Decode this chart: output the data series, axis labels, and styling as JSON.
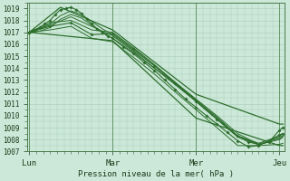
{
  "background_color": "#cce8d8",
  "plot_bg_color": "#cce8d8",
  "grid_major_color": "#aaccb8",
  "grid_minor_color": "#aaccb8",
  "line_color": "#2d6e2d",
  "ylim": [
    1007,
    1019.5
  ],
  "yticks": [
    1007,
    1008,
    1009,
    1010,
    1011,
    1012,
    1013,
    1014,
    1015,
    1016,
    1017,
    1018,
    1019
  ],
  "xlim": [
    -2,
    294
  ],
  "xtick_labels": [
    "Lun",
    "Mar",
    "Mer",
    "Jeu"
  ],
  "xtick_positions": [
    0,
    96,
    192,
    288
  ],
  "xlabel": "Pression niveau de la mer( hPa )",
  "vline_positions": [
    0,
    96,
    192,
    288
  ],
  "lines": [
    {
      "x": [
        0,
        36,
        96,
        192,
        288,
        292
      ],
      "y": [
        1017.0,
        1019.1,
        1017.2,
        1011.8,
        1009.3,
        1009.3
      ],
      "lw": 0.9,
      "marker": false
    },
    {
      "x": [
        0,
        96,
        192,
        288,
        292
      ],
      "y": [
        1017.0,
        1016.3,
        1009.8,
        1007.5,
        1007.5
      ],
      "lw": 0.9,
      "marker": false
    },
    {
      "x": [
        0,
        6,
        12,
        18,
        24,
        30,
        36,
        42,
        48,
        54,
        60,
        66,
        72,
        78,
        84,
        90,
        96,
        108,
        120,
        132,
        144,
        156,
        168,
        180,
        192,
        204,
        216,
        228,
        240,
        252,
        264,
        276,
        288,
        292
      ],
      "y": [
        1017.0,
        1017.2,
        1017.4,
        1017.7,
        1018.0,
        1018.5,
        1018.9,
        1019.0,
        1019.1,
        1018.9,
        1018.6,
        1018.1,
        1017.7,
        1017.3,
        1017.0,
        1016.7,
        1016.5,
        1015.8,
        1015.2,
        1014.5,
        1013.8,
        1013.0,
        1012.2,
        1011.4,
        1010.7,
        1010.0,
        1009.3,
        1008.6,
        1007.9,
        1007.4,
        1007.5,
        1007.9,
        1008.4,
        1008.5
      ],
      "lw": 0.8,
      "marker": true
    },
    {
      "x": [
        0,
        12,
        24,
        36,
        48,
        60,
        72,
        84,
        96,
        120,
        144,
        168,
        192,
        216,
        240,
        264,
        288,
        292
      ],
      "y": [
        1017.0,
        1017.3,
        1017.7,
        1018.4,
        1018.8,
        1018.5,
        1017.9,
        1017.3,
        1016.8,
        1015.5,
        1014.2,
        1012.8,
        1011.4,
        1010.0,
        1008.5,
        1007.6,
        1008.0,
        1008.2
      ],
      "lw": 0.7,
      "marker": false
    },
    {
      "x": [
        0,
        12,
        24,
        36,
        48,
        60,
        72,
        84,
        96,
        120,
        144,
        168,
        192,
        216,
        240,
        264,
        288,
        292
      ],
      "y": [
        1017.0,
        1017.1,
        1017.4,
        1018.1,
        1018.5,
        1018.2,
        1017.6,
        1017.0,
        1016.5,
        1015.3,
        1014.0,
        1012.7,
        1011.3,
        1009.9,
        1008.3,
        1007.6,
        1008.1,
        1008.3
      ],
      "lw": 0.7,
      "marker": false
    },
    {
      "x": [
        0,
        24,
        48,
        72,
        96,
        120,
        144,
        168,
        192,
        216,
        240,
        264,
        288,
        292
      ],
      "y": [
        1017.0,
        1017.6,
        1018.3,
        1017.5,
        1016.7,
        1015.4,
        1014.0,
        1012.6,
        1011.2,
        1009.7,
        1008.2,
        1007.6,
        1008.2,
        1008.3
      ],
      "lw": 0.7,
      "marker": false
    },
    {
      "x": [
        0,
        24,
        48,
        72,
        96,
        120,
        144,
        168,
        192,
        216,
        240,
        264,
        288,
        292
      ],
      "y": [
        1017.0,
        1017.2,
        1017.5,
        1016.5,
        1016.2,
        1014.9,
        1013.5,
        1012.0,
        1010.5,
        1009.0,
        1007.5,
        1007.5,
        1007.6,
        1007.7
      ],
      "lw": 0.7,
      "marker": false
    },
    {
      "x": [
        0,
        24,
        48,
        72,
        96,
        120,
        144,
        168,
        192,
        216,
        240,
        264,
        288,
        292
      ],
      "y": [
        1017.0,
        1017.8,
        1018.0,
        1017.2,
        1017.0,
        1015.7,
        1014.3,
        1012.8,
        1011.3,
        1009.8,
        1008.3,
        1007.7,
        1008.3,
        1008.5
      ],
      "lw": 0.7,
      "marker": false
    },
    {
      "x": [
        0,
        24,
        48,
        72,
        96,
        120,
        144,
        168,
        192,
        216,
        240,
        252,
        264,
        276,
        288,
        292
      ],
      "y": [
        1017.0,
        1017.5,
        1017.8,
        1016.8,
        1016.9,
        1015.6,
        1014.2,
        1012.7,
        1011.2,
        1009.7,
        1008.3,
        1007.8,
        1007.6,
        1007.8,
        1008.8,
        1009.0
      ],
      "lw": 0.8,
      "marker": true
    }
  ]
}
